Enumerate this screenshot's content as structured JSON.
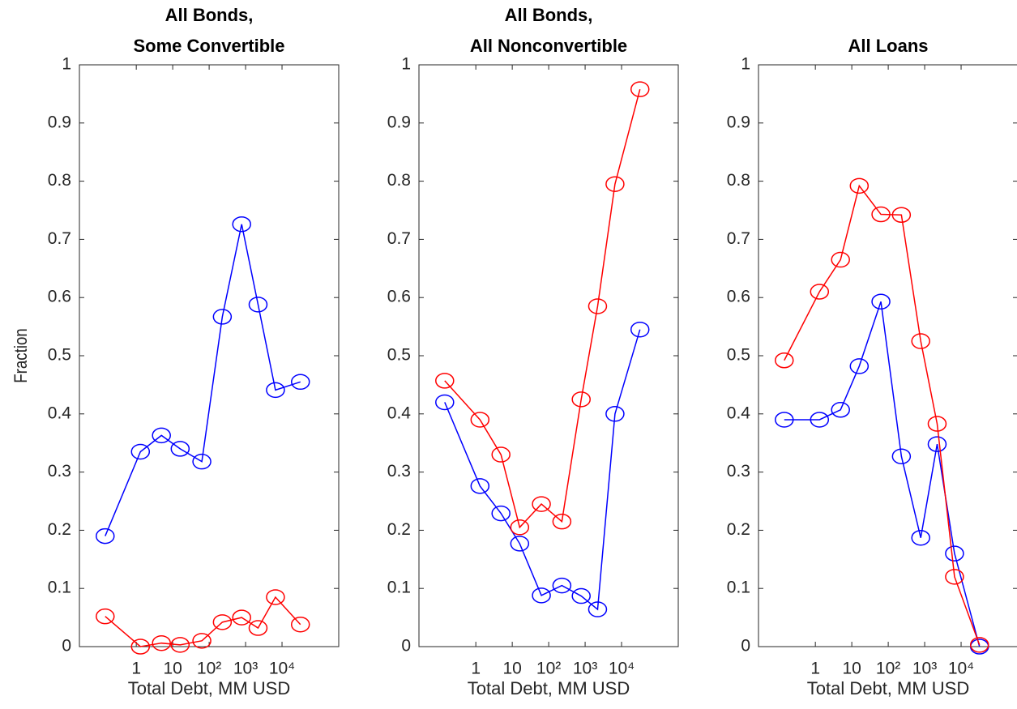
{
  "chart_data": [
    {
      "type": "line",
      "title": [
        "All Bonds,",
        "Some Convertible"
      ],
      "ylabel": "Fraction",
      "xlabel": "Total Debt, MM USD",
      "x": [
        0.14,
        1.3,
        4.9,
        16,
        63,
        230,
        780,
        2200,
        6600,
        32000
      ],
      "series": [
        {
          "color": "#0000ff",
          "values": [
            0.19,
            0.335,
            0.363,
            0.34,
            0.318,
            0.567,
            0.726,
            0.588,
            0.441,
            0.455
          ]
        },
        {
          "color": "#ff0000",
          "values": [
            0.052,
            0,
            0.006,
            0.003,
            0.01,
            0.042,
            0.05,
            0.032,
            0.085,
            0.038
          ]
        }
      ],
      "xscale": "log",
      "xlim": [
        0.0275,
        360000
      ],
      "xticks": [
        {
          "value": 1,
          "label": "1"
        },
        10,
        {
          "value": 100,
          "label": "10²"
        },
        {
          "value": 1000,
          "label": "10³"
        },
        {
          "value": 10000,
          "label": "10⁴"
        }
      ],
      "ylim": [
        0,
        1
      ],
      "yticks": [
        0,
        0.1,
        0.2,
        0.3,
        0.4,
        0.5,
        0.6,
        0.7,
        0.8,
        0.9,
        1
      ]
    },
    {
      "type": "line",
      "title": [
        "All Bonds,",
        "All Nonconvertible"
      ],
      "xlabel": "Total Debt, MM USD",
      "x": [
        0.14,
        1.3,
        4.9,
        16,
        63,
        230,
        780,
        2200,
        6600,
        32000
      ],
      "series": [
        {
          "color": "#0000ff",
          "values": [
            0.42,
            0.276,
            0.229,
            0.177,
            0.088,
            0.105,
            0.087,
            0.064,
            0.4,
            0.545
          ]
        },
        {
          "color": "#ff0000",
          "values": [
            0.457,
            0.39,
            0.33,
            0.205,
            0.245,
            0.215,
            0.425,
            0.585,
            0.795,
            0.958
          ]
        }
      ],
      "xscale": "log",
      "xlim": [
        0.0275,
        360000
      ],
      "xticks": [
        {
          "value": 1,
          "label": "1"
        },
        10,
        {
          "value": 100,
          "label": "10²"
        },
        {
          "value": 1000,
          "label": "10³"
        },
        {
          "value": 10000,
          "label": "10⁴"
        }
      ],
      "ylim": [
        0,
        1
      ],
      "yticks": [
        0,
        0.1,
        0.2,
        0.3,
        0.4,
        0.5,
        0.6,
        0.7,
        0.8,
        0.9,
        1
      ]
    },
    {
      "type": "line",
      "title": [
        "All Loans"
      ],
      "xlabel": "Total Debt, MM USD",
      "x": [
        0.14,
        1.3,
        4.9,
        16,
        63,
        230,
        780,
        2200,
        6600,
        32000
      ],
      "series": [
        {
          "color": "#0000ff",
          "values": [
            0.39,
            0.39,
            0.407,
            0.482,
            0.593,
            0.327,
            0.187,
            0.348,
            0.16,
            0
          ]
        },
        {
          "color": "#ff0000",
          "values": [
            0.492,
            0.61,
            0.665,
            0.792,
            0.743,
            0.742,
            0.525,
            0.383,
            0.12,
            0.003
          ]
        }
      ],
      "xscale": "log",
      "xlim": [
        0.0275,
        360000
      ],
      "xticks": [
        {
          "value": 1,
          "label": "1"
        },
        10,
        {
          "value": 100,
          "label": "10²"
        },
        {
          "value": 1000,
          "label": "10³"
        },
        {
          "value": 10000,
          "label": "10⁴"
        }
      ],
      "ylim": [
        0,
        1
      ],
      "yticks": [
        0,
        0.1,
        0.2,
        0.3,
        0.4,
        0.5,
        0.6,
        0.7,
        0.8,
        0.9,
        1
      ]
    }
  ]
}
